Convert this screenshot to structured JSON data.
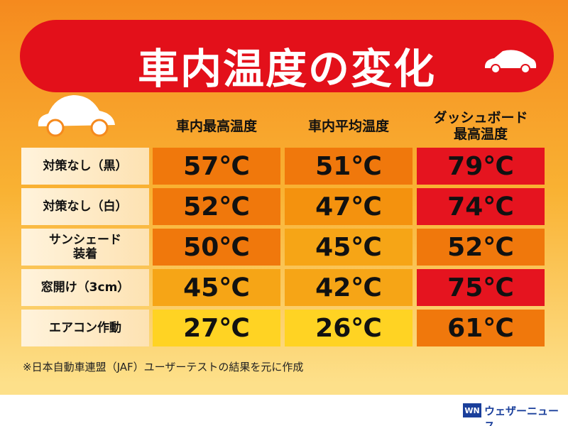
{
  "header": {
    "title": "車内温度の変化"
  },
  "table": {
    "columns": [
      "車内最高温度",
      "車内平均温度",
      "ダッシュボード\n最高温度"
    ],
    "rows": [
      [
        "対策なし（黒）",
        "57℃",
        "51℃",
        "79℃"
      ],
      [
        "対策なし（白）",
        "52℃",
        "47℃",
        "74℃"
      ],
      [
        "サンシェード\n装着",
        "50℃",
        "45℃",
        "52℃"
      ],
      [
        "窓開け（3cm）",
        "45℃",
        "42℃",
        "75℃"
      ],
      [
        "エアコン作動",
        "27℃",
        "26℃",
        "61℃"
      ]
    ]
  },
  "footnote": "※日本自動車連盟（JAF）ユーザーテストの結果を元に作成",
  "logo": {
    "mark": "WN",
    "text": "ウェザーニュース"
  }
}
